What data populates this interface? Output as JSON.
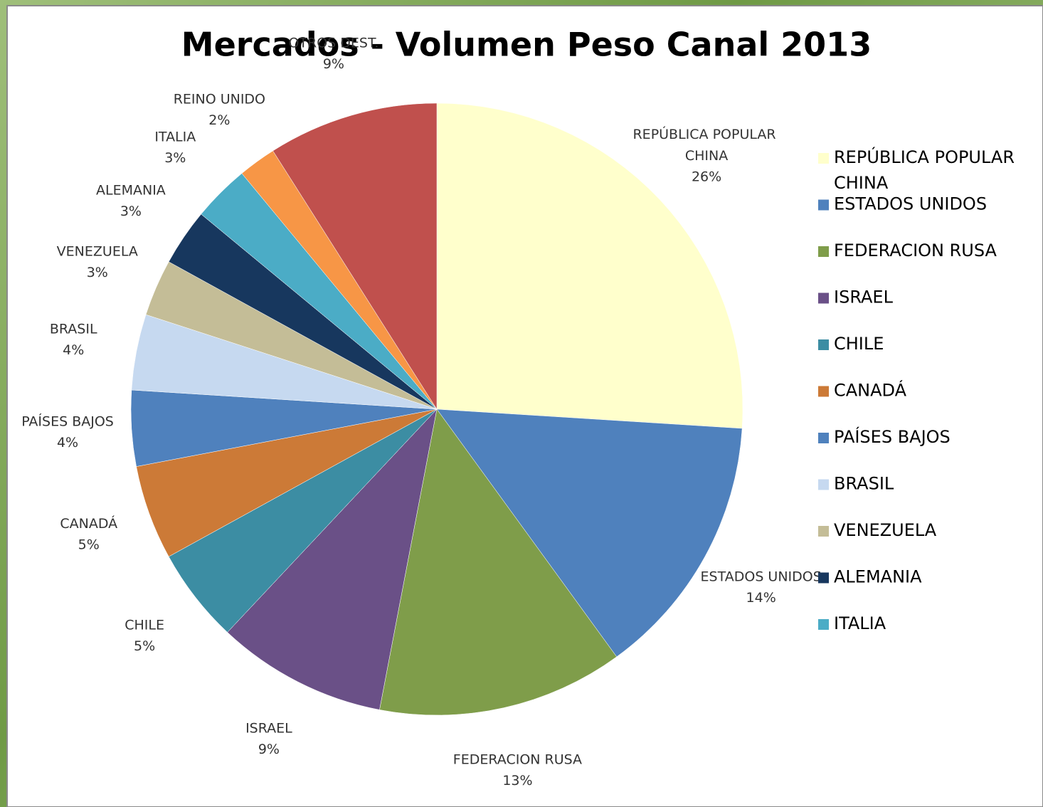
{
  "chart_data": {
    "type": "pie",
    "title": "Mercados - Volumen Peso Canal 2013",
    "categories": [
      "REPÚBLICA POPULAR CHINA",
      "ESTADOS UNIDOS",
      "FEDERACION RUSA",
      "ISRAEL",
      "CHILE",
      "CANADÁ",
      "PAÍSES BAJOS",
      "BRASIL",
      "VENEZUELA",
      "ALEMANIA",
      "ITALIA",
      "REINO UNIDO",
      "OTROS DEST."
    ],
    "values": [
      26,
      14,
      13,
      9,
      5,
      5,
      4,
      4,
      3,
      3,
      3,
      2,
      9
    ],
    "value_labels": [
      "26%",
      "14%",
      "13%",
      "9%",
      "5%",
      "5%",
      "4%",
      "4%",
      "3%",
      "3%",
      "3%",
      "2%",
      "9%"
    ],
    "colors": [
      "#FFFFCC",
      "#4F81BD",
      "#7F9D4A",
      "#6A5087",
      "#3C8DA3",
      "#CC7A37",
      "#4F81BD",
      "#C6D9F0",
      "#C4BD97",
      "#17375E",
      "#4BACC6",
      "#F79646",
      "#C0504D"
    ]
  }
}
